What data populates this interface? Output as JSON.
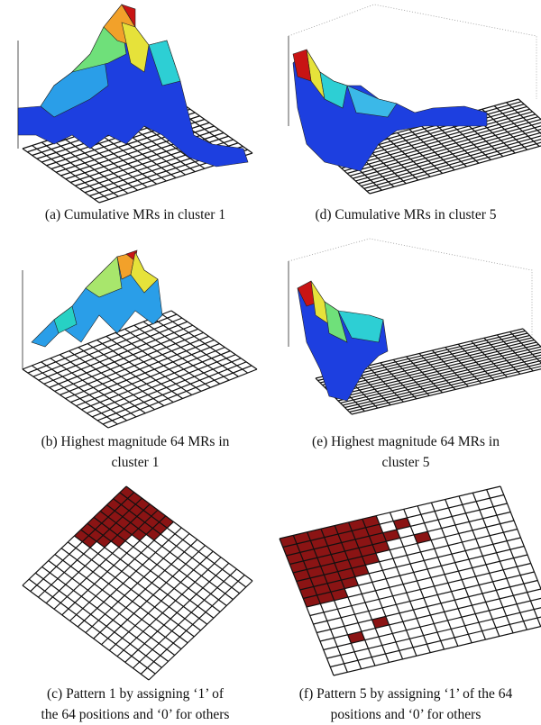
{
  "figure": {
    "panels": [
      {
        "caption": [
          "(a) Cumulative MRs in cluster 1"
        ]
      },
      {
        "caption": [
          "(d) Cumulative MRs in cluster 5"
        ]
      },
      {
        "caption": [
          "(b) Highest magnitude 64 MRs in",
          "cluster 1"
        ]
      },
      {
        "caption": [
          "(e) Highest magnitude 64 MRs in",
          "cluster 5"
        ]
      },
      {
        "caption": [
          "(c) Pattern 1 by assigning ‘1’ of",
          "the 64 positions and ‘0’ for others"
        ]
      },
      {
        "caption": [
          "(f) Pattern 5 by assigning ‘1’ of the 64",
          "positions and ‘0’ for others"
        ]
      }
    ]
  }
}
